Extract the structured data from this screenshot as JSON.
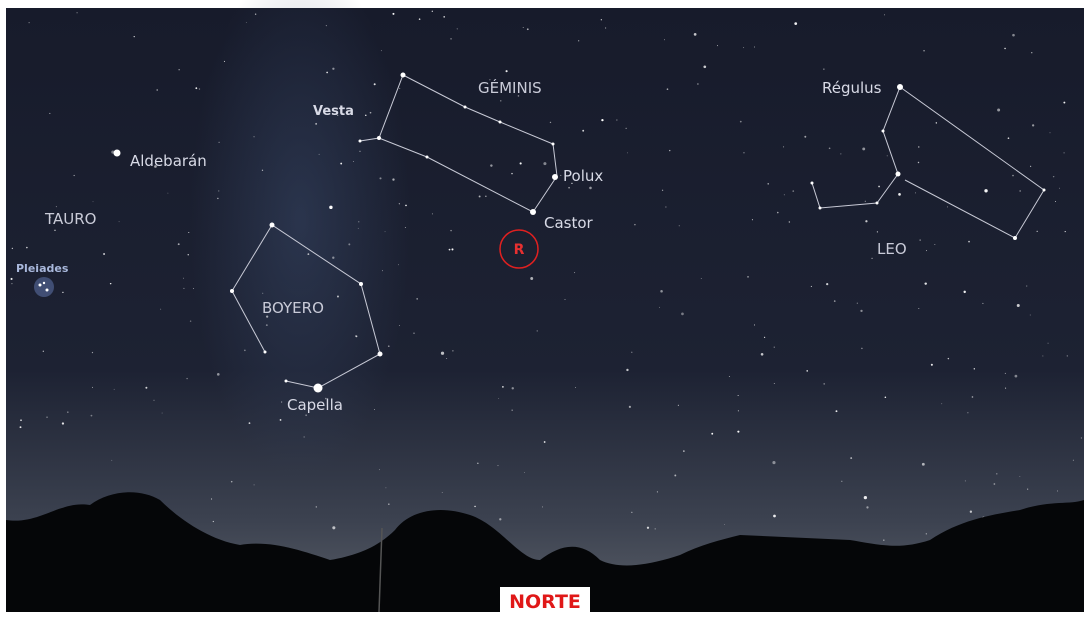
{
  "constellations": {
    "geminis": "GÉMINIS",
    "tauro": "TAURO",
    "boyero": "BOYERO",
    "leo": "LEO"
  },
  "stars": {
    "vesta": "Vesta",
    "aldebaran": "Aldebarán",
    "pleiades": "Pleiades",
    "polux": "Polux",
    "castor": "Castor",
    "capella": "Capella",
    "regulus": "Régulus"
  },
  "marker": "R",
  "direction": "NORTE"
}
